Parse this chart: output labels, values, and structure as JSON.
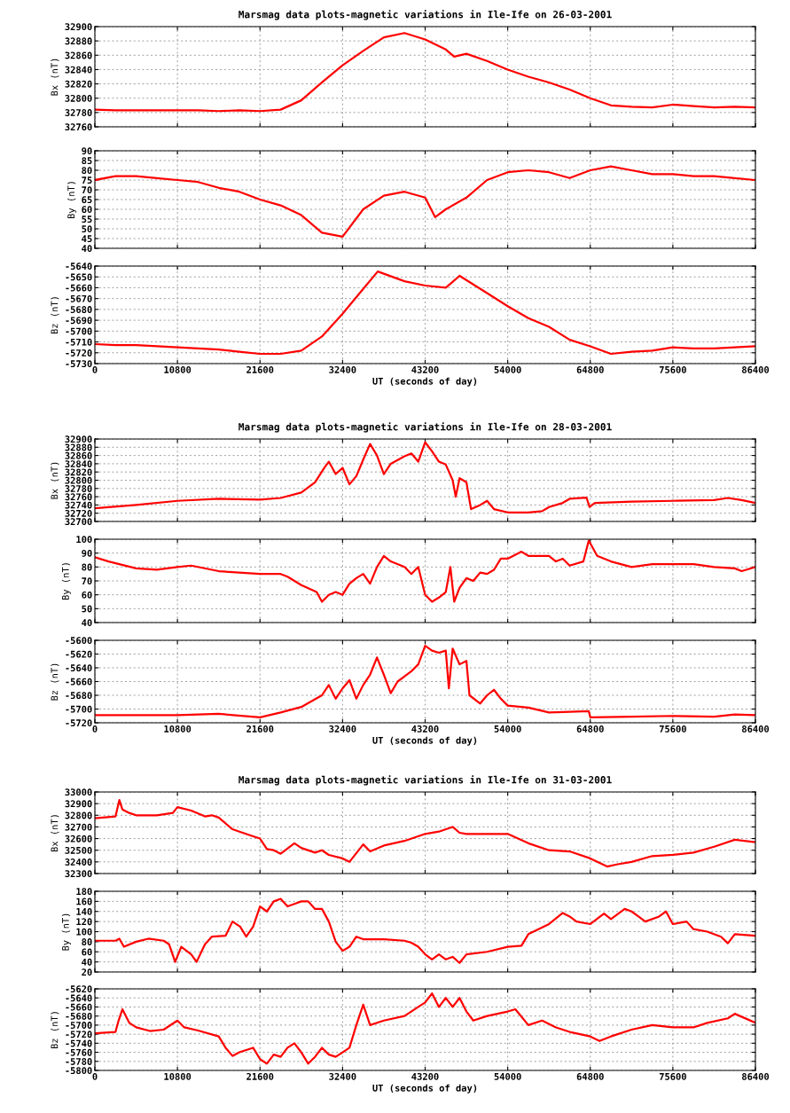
{
  "chart_data": [
    {
      "type": "line",
      "title": "Marsmag data plots-magnetic variations in Ile-Ife on 26-03-2001",
      "ylabel": "Bx (nT)",
      "xlim": [
        0,
        86400
      ],
      "xticks": [
        0,
        10800,
        21600,
        32400,
        43200,
        54000,
        64800,
        75600,
        86400
      ],
      "ylim": [
        32760,
        32900
      ],
      "yticks": [
        32760,
        32780,
        32800,
        32820,
        32840,
        32860,
        32880,
        32900
      ],
      "grid": true,
      "tick_labels": "y",
      "x": [
        0,
        2700,
        5400,
        8100,
        10800,
        13500,
        16200,
        18900,
        21600,
        24300,
        27000,
        29700,
        32400,
        35100,
        37800,
        40500,
        43200,
        45900,
        47000,
        48600,
        51300,
        54000,
        56700,
        59400,
        62100,
        64800,
        67500,
        70200,
        72900,
        75600,
        78300,
        81000,
        83700,
        86400
      ],
      "series": [
        {
          "color": "#ff0000",
          "values": [
            32784,
            32783,
            32783,
            32783,
            32783,
            32783,
            32782,
            32783,
            32782,
            32784,
            32797,
            32822,
            32846,
            32866,
            32885,
            32891,
            32882,
            32868,
            32858,
            32862,
            32852,
            32840,
            32830,
            32822,
            32812,
            32800,
            32790,
            32788,
            32787,
            32791,
            32789,
            32787,
            32788,
            32787
          ]
        }
      ]
    },
    {
      "type": "line",
      "ylabel": "By (nT)",
      "xlim": [
        0,
        86400
      ],
      "xticks": [
        0,
        10800,
        21600,
        32400,
        43200,
        54000,
        64800,
        75600,
        86400
      ],
      "ylim": [
        40,
        90
      ],
      "yticks": [
        40,
        45,
        50,
        55,
        60,
        65,
        70,
        75,
        80,
        85,
        90
      ],
      "grid": true,
      "tick_labels": "y",
      "x": [
        0,
        2700,
        5400,
        8100,
        10800,
        13500,
        16200,
        18900,
        21600,
        24300,
        27000,
        29700,
        32400,
        35100,
        37800,
        40500,
        43200,
        44500,
        45900,
        48600,
        51300,
        54000,
        56700,
        59400,
        62100,
        64800,
        67500,
        70200,
        72900,
        75600,
        78300,
        81000,
        83700,
        86400
      ],
      "series": [
        {
          "color": "#ff0000",
          "values": [
            75,
            77,
            77,
            76,
            75,
            74,
            71,
            69,
            65,
            62,
            57,
            48,
            46,
            60,
            67,
            69,
            66,
            56,
            60,
            66,
            75,
            79,
            80,
            79,
            76,
            80,
            82,
            80,
            78,
            78,
            77,
            77,
            76,
            75
          ]
        }
      ]
    },
    {
      "type": "line",
      "xlabel": "UT (seconds of day)",
      "ylabel": "Bz (nT)",
      "xlim": [
        0,
        86400
      ],
      "xticks": [
        0,
        10800,
        21600,
        32400,
        43200,
        54000,
        64800,
        75600,
        86400
      ],
      "ylim": [
        -5730,
        -5640
      ],
      "yticks": [
        -5730,
        -5720,
        -5710,
        -5700,
        -5690,
        -5680,
        -5670,
        -5660,
        -5650,
        -5640
      ],
      "grid": true,
      "x": [
        0,
        2700,
        5400,
        8100,
        10800,
        13500,
        16200,
        18900,
        21600,
        24300,
        27000,
        29700,
        32400,
        35100,
        37000,
        40500,
        43200,
        45900,
        47700,
        51300,
        54000,
        56700,
        59400,
        62100,
        64800,
        67500,
        70200,
        72900,
        75600,
        78300,
        81000,
        83700,
        86400
      ],
      "series": [
        {
          "color": "#ff0000",
          "values": [
            -5712,
            -5713,
            -5713,
            -5714,
            -5715,
            -5716,
            -5717,
            -5719,
            -5721,
            -5721,
            -5718,
            -5705,
            -5684,
            -5661,
            -5645,
            -5654,
            -5658,
            -5660,
            -5649,
            -5665,
            -5677,
            -5688,
            -5696,
            -5708,
            -5714,
            -5721,
            -5719,
            -5718,
            -5715,
            -5716,
            -5716,
            -5715,
            -5714
          ]
        }
      ]
    },
    {
      "type": "line",
      "title": "Marsmag data plots-magnetic variations in Ile-Ife on 28-03-2001",
      "ylabel": "Bx (nT)",
      "xlim": [
        0,
        86400
      ],
      "xticks": [
        0,
        10800,
        21600,
        32400,
        43200,
        54000,
        64800,
        75600,
        86400
      ],
      "ylim": [
        32700,
        32900
      ],
      "yticks": [
        32700,
        32720,
        32740,
        32760,
        32780,
        32800,
        32820,
        32840,
        32860,
        32880,
        32900
      ],
      "grid": true,
      "tick_labels": "y",
      "x": [
        0,
        5400,
        10800,
        16200,
        21600,
        24300,
        27000,
        28800,
        30000,
        30600,
        31500,
        32400,
        33300,
        34200,
        35100,
        36000,
        36900,
        37800,
        38700,
        40500,
        41400,
        42300,
        43200,
        44100,
        45000,
        45900,
        46800,
        47200,
        47700,
        48600,
        49200,
        50400,
        51300,
        52200,
        54000,
        56700,
        58500,
        59400,
        61200,
        62100,
        64300,
        64700,
        65400,
        70200,
        75600,
        81000,
        82800,
        84600,
        86400
      ],
      "series": [
        {
          "color": "#ff0000",
          "values": [
            32732,
            32740,
            32750,
            32755,
            32753,
            32757,
            32770,
            32795,
            32830,
            32845,
            32815,
            32830,
            32790,
            32810,
            32850,
            32888,
            32860,
            32815,
            32840,
            32858,
            32865,
            32845,
            32892,
            32870,
            32845,
            32838,
            32800,
            32760,
            32805,
            32795,
            32730,
            32740,
            32750,
            32730,
            32722,
            32722,
            32725,
            32735,
            32745,
            32755,
            32758,
            32735,
            32745,
            32748,
            32750,
            32752,
            32757,
            32752,
            32745
          ]
        }
      ]
    },
    {
      "type": "line",
      "ylabel": "By (nT)",
      "xlim": [
        0,
        86400
      ],
      "xticks": [
        0,
        10800,
        21600,
        32400,
        43200,
        54000,
        64800,
        75600,
        86400
      ],
      "ylim": [
        40,
        100
      ],
      "yticks": [
        40,
        50,
        60,
        70,
        80,
        90,
        100
      ],
      "grid": true,
      "tick_labels": "y",
      "x": [
        0,
        1800,
        5400,
        8100,
        10800,
        12600,
        16200,
        21600,
        24300,
        25200,
        27000,
        29000,
        29700,
        30600,
        31500,
        32400,
        33300,
        34200,
        35100,
        36000,
        36900,
        37800,
        38700,
        40500,
        41400,
        42300,
        43200,
        44100,
        45000,
        45900,
        46500,
        47000,
        47700,
        48600,
        49500,
        50400,
        51300,
        52200,
        53100,
        54000,
        55800,
        56700,
        59400,
        60300,
        61200,
        62100,
        63900,
        64600,
        65700,
        67500,
        70200,
        72900,
        75600,
        78300,
        81000,
        83700,
        84600,
        86400
      ],
      "series": [
        {
          "color": "#ff0000",
          "values": [
            87,
            84,
            79,
            78,
            80,
            81,
            77,
            75,
            75,
            73,
            67,
            62,
            55,
            60,
            62,
            60,
            68,
            72,
            75,
            68,
            80,
            88,
            84,
            80,
            75,
            80,
            60,
            55,
            58,
            62,
            80,
            55,
            65,
            72,
            70,
            76,
            75,
            78,
            86,
            86,
            91,
            88,
            88,
            84,
            86,
            81,
            84,
            99,
            88,
            84,
            80,
            82,
            82,
            82,
            80,
            79,
            77,
            80
          ]
        }
      ]
    },
    {
      "type": "line",
      "xlabel": "UT (seconds of day)",
      "ylabel": "Bz (nT)",
      "xlim": [
        0,
        86400
      ],
      "xticks": [
        0,
        10800,
        21600,
        32400,
        43200,
        54000,
        64800,
        75600,
        86400
      ],
      "ylim": [
        -5720,
        -5600
      ],
      "yticks": [
        -5720,
        -5700,
        -5680,
        -5660,
        -5640,
        -5620,
        -5600
      ],
      "grid": true,
      "x": [
        0,
        10800,
        16200,
        21600,
        24300,
        27000,
        29700,
        30600,
        31500,
        32400,
        33300,
        34200,
        35100,
        36000,
        36900,
        37800,
        38700,
        39600,
        41400,
        42300,
        43200,
        44100,
        45000,
        45900,
        46300,
        46800,
        47700,
        48600,
        49000,
        50400,
        51300,
        52200,
        53100,
        54000,
        56700,
        59400,
        62100,
        64600,
        64800,
        70200,
        75600,
        81000,
        83700,
        86400
      ],
      "series": [
        {
          "color": "#ff0000",
          "values": [
            -5709,
            -5709,
            -5707,
            -5712,
            -5705,
            -5697,
            -5680,
            -5665,
            -5685,
            -5670,
            -5658,
            -5685,
            -5665,
            -5650,
            -5625,
            -5650,
            -5677,
            -5660,
            -5645,
            -5635,
            -5608,
            -5615,
            -5618,
            -5615,
            -5670,
            -5612,
            -5635,
            -5630,
            -5680,
            -5692,
            -5680,
            -5672,
            -5685,
            -5695,
            -5698,
            -5705,
            -5704,
            -5703,
            -5712,
            -5711,
            -5710,
            -5711,
            -5708,
            -5709
          ]
        }
      ]
    },
    {
      "type": "line",
      "title": "Marsmag data plots-magnetic variations in Ile-Ife on 31-03-2001",
      "ylabel": "Bx (nT)",
      "xlim": [
        0,
        86400
      ],
      "xticks": [
        0,
        10800,
        21600,
        32400,
        43200,
        54000,
        64800,
        75600,
        86400
      ],
      "ylim": [
        32300,
        33000
      ],
      "yticks": [
        32300,
        32400,
        32500,
        32600,
        32700,
        32800,
        32900,
        33000
      ],
      "grid": true,
      "tick_labels": "y",
      "x": [
        0,
        2700,
        3200,
        3600,
        4500,
        5400,
        8100,
        10200,
        10800,
        12600,
        14400,
        15300,
        16200,
        18000,
        18900,
        20700,
        21600,
        22500,
        23400,
        24300,
        26100,
        27000,
        28800,
        29700,
        30600,
        32400,
        33300,
        35100,
        36000,
        37800,
        40500,
        43200,
        45000,
        46800,
        47700,
        48600,
        51300,
        54000,
        56700,
        59400,
        62100,
        64800,
        67000,
        68400,
        70200,
        72900,
        75600,
        78300,
        81000,
        83700,
        86400
      ],
      "series": [
        {
          "color": "#ff0000",
          "values": [
            32775,
            32790,
            32930,
            32850,
            32820,
            32800,
            32800,
            32820,
            32870,
            32840,
            32790,
            32800,
            32780,
            32680,
            32660,
            32620,
            32600,
            32510,
            32500,
            32470,
            32560,
            32520,
            32480,
            32500,
            32460,
            32430,
            32400,
            32550,
            32490,
            32540,
            32580,
            32640,
            32660,
            32700,
            32650,
            32640,
            32640,
            32640,
            32560,
            32500,
            32490,
            32430,
            32360,
            32380,
            32400,
            32450,
            32460,
            32480,
            32530,
            32590,
            32570
          ]
        }
      ]
    },
    {
      "type": "line",
      "ylabel": "By (nT)",
      "xlim": [
        0,
        86400
      ],
      "xticks": [
        0,
        10800,
        21600,
        32400,
        43200,
        54000,
        64800,
        75600,
        86400
      ],
      "ylim": [
        20,
        180
      ],
      "yticks": [
        20,
        40,
        60,
        80,
        100,
        120,
        140,
        160,
        180
      ],
      "grid": true,
      "tick_labels": "y",
      "x": [
        0,
        2700,
        3200,
        3800,
        5400,
        7000,
        9000,
        9700,
        10500,
        11300,
        12600,
        13300,
        14400,
        15300,
        17100,
        18000,
        19000,
        19800,
        20700,
        21600,
        22500,
        23400,
        24300,
        25200,
        26100,
        27000,
        27900,
        28800,
        29700,
        30600,
        31500,
        32400,
        33300,
        34200,
        35100,
        37800,
        40500,
        41400,
        42300,
        43200,
        44100,
        45000,
        45900,
        46800,
        47700,
        48600,
        51300,
        54000,
        55800,
        56700,
        59400,
        61200,
        62100,
        63000,
        64800,
        66600,
        67500,
        69300,
        70200,
        71100,
        72000,
        73800,
        74700,
        75600,
        77400,
        78300,
        80100,
        81900,
        82800,
        83700,
        86400
      ],
      "series": [
        {
          "color": "#ff0000",
          "values": [
            82,
            82,
            86,
            70,
            80,
            86,
            82,
            75,
            40,
            70,
            55,
            40,
            75,
            90,
            92,
            120,
            110,
            90,
            110,
            150,
            140,
            160,
            165,
            150,
            155,
            160,
            160,
            145,
            145,
            120,
            80,
            62,
            70,
            90,
            85,
            85,
            82,
            78,
            70,
            55,
            45,
            55,
            45,
            50,
            38,
            55,
            60,
            70,
            72,
            95,
            115,
            137,
            130,
            120,
            115,
            136,
            125,
            145,
            140,
            130,
            120,
            130,
            140,
            115,
            120,
            105,
            100,
            90,
            77,
            95,
            92
          ]
        }
      ]
    },
    {
      "type": "line",
      "xlabel": "UT (seconds of day)",
      "ylabel": "Bz (nT)",
      "xlim": [
        0,
        86400
      ],
      "xticks": [
        0,
        10800,
        21600,
        32400,
        43200,
        54000,
        64800,
        75600,
        86400
      ],
      "ylim": [
        -5800,
        -5620
      ],
      "yticks": [
        -5800,
        -5780,
        -5760,
        -5740,
        -5720,
        -5700,
        -5680,
        -5660,
        -5640,
        -5620
      ],
      "grid": true,
      "x": [
        0,
        2700,
        3100,
        3600,
        4500,
        5400,
        7200,
        9000,
        10800,
        11700,
        13500,
        16200,
        17100,
        18000,
        18900,
        20700,
        21600,
        22500,
        23400,
        24300,
        25200,
        26100,
        27000,
        27900,
        28800,
        29700,
        30600,
        31500,
        32400,
        33300,
        34200,
        35100,
        36000,
        37800,
        40500,
        42300,
        43200,
        44100,
        45000,
        45900,
        46800,
        47700,
        48600,
        49500,
        51300,
        54000,
        55000,
        56700,
        58500,
        60300,
        62100,
        64800,
        66000,
        67500,
        70200,
        72900,
        75600,
        78300,
        80100,
        82800,
        83700,
        86400
      ],
      "series": [
        {
          "color": "#ff0000",
          "values": [
            -5718,
            -5715,
            -5690,
            -5665,
            -5695,
            -5705,
            -5713,
            -5710,
            -5690,
            -5705,
            -5712,
            -5725,
            -5750,
            -5768,
            -5760,
            -5750,
            -5775,
            -5785,
            -5765,
            -5770,
            -5750,
            -5740,
            -5760,
            -5785,
            -5770,
            -5750,
            -5765,
            -5770,
            -5760,
            -5750,
            -5700,
            -5655,
            -5700,
            -5690,
            -5680,
            -5660,
            -5650,
            -5630,
            -5660,
            -5640,
            -5660,
            -5640,
            -5670,
            -5690,
            -5680,
            -5670,
            -5665,
            -5700,
            -5690,
            -5705,
            -5715,
            -5725,
            -5735,
            -5725,
            -5710,
            -5700,
            -5705,
            -5705,
            -5695,
            -5685,
            -5675,
            -5695
          ]
        }
      ]
    }
  ]
}
